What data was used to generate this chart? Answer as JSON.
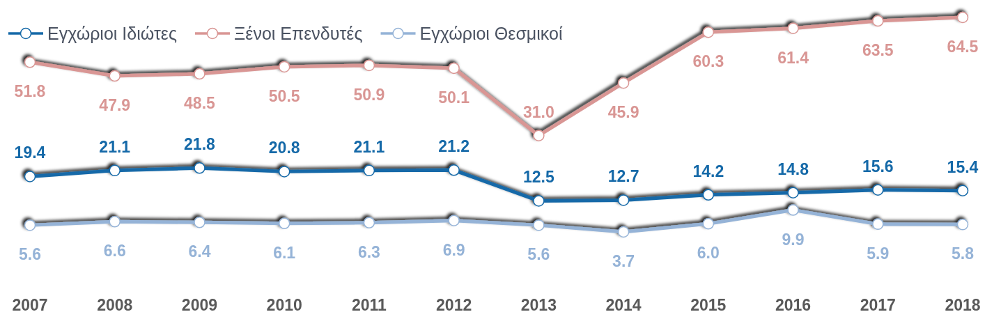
{
  "chart_data": {
    "type": "line",
    "categories": [
      "2007",
      "2008",
      "2009",
      "2010",
      "2011",
      "2012",
      "2013",
      "2014",
      "2015",
      "2016",
      "2017",
      "2018"
    ],
    "series": [
      {
        "name": "Εγχώριοι Ιδιώτες",
        "color": "#1569a8",
        "values": [
          19.4,
          21.1,
          21.8,
          20.8,
          21.1,
          21.2,
          12.5,
          12.7,
          14.2,
          14.8,
          15.6,
          15.4
        ],
        "value_labels": [
          "19.4",
          "21.1",
          "21.8",
          "20.8",
          "21.1",
          "21.2",
          "12.5",
          "12.7",
          "14.2",
          "14.8",
          "15.6",
          "15.4"
        ]
      },
      {
        "name": "Ξένοι Επενδυτές",
        "color": "#d99694",
        "values": [
          51.8,
          47.9,
          48.5,
          50.5,
          50.9,
          50.1,
          31.0,
          45.9,
          60.3,
          61.4,
          63.5,
          64.5
        ],
        "value_labels": [
          "51.8",
          "47.9",
          "48.5",
          "50.5",
          "50.9",
          "50.1",
          "31.0",
          "45.9",
          "60.3",
          "61.4",
          "63.5",
          "64.5"
        ]
      },
      {
        "name": "Εγχώριοι Θεσμικοί",
        "color": "#95b3d7",
        "values": [
          5.6,
          6.6,
          6.4,
          6.1,
          6.3,
          6.9,
          5.6,
          3.7,
          6.0,
          9.9,
          5.9,
          5.8
        ],
        "value_labels": [
          "5.6",
          "6.6",
          "6.4",
          "6.1",
          "6.3",
          "6.9",
          "5.6",
          "3.7",
          "6.0",
          "9.9",
          "5.9",
          "5.8"
        ]
      }
    ],
    "legend": "top left",
    "marker": "circle",
    "line_style": "solid",
    "tick_labels": "x"
  }
}
